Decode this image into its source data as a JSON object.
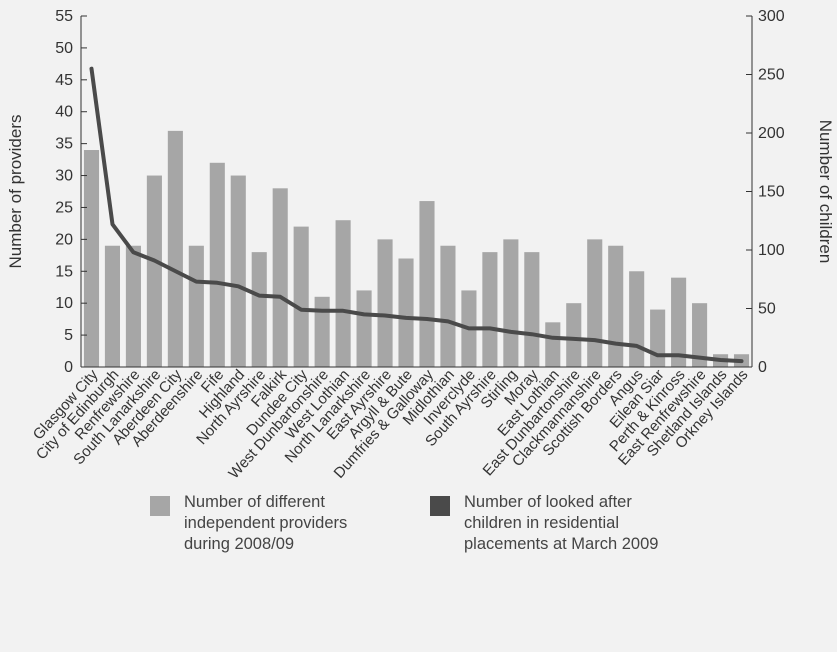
{
  "chart_data": {
    "type": "bar",
    "categories": [
      "Glasgow City",
      "City of Edinburgh",
      "Renfrewshire",
      "South Lanarkshire",
      "Aberdeen City",
      "Aberdeenshire",
      "Fife",
      "Highland",
      "North Ayrshire",
      "Falkirk",
      "Dundee City",
      "West Dunbartonshire",
      "West Lothian",
      "North Lanarkshire",
      "East Ayrshire",
      "Argyll & Bute",
      "Dumfries & Galloway",
      "Midlothian",
      "Inverclyde",
      "South Ayrshire",
      "Stirling",
      "Moray",
      "East Lothian",
      "East Dunbartonshire",
      "Clackmannanshire",
      "Scottish Borders",
      "Angus",
      "Eilean Siar",
      "Perth & Kinross",
      "East Renfrewshire",
      "Shetland Islands",
      "Orkney Islands"
    ],
    "series": [
      {
        "name": "Number of different independent providers during 2008/09",
        "type": "bar",
        "axis": "left",
        "color": "#a6a6a6",
        "values": [
          34,
          19,
          19,
          30,
          37,
          19,
          32,
          30,
          18,
          28,
          22,
          11,
          23,
          12,
          20,
          17,
          26,
          19,
          12,
          18,
          20,
          18,
          7,
          10,
          20,
          19,
          15,
          9,
          14,
          10,
          2,
          2
        ]
      },
      {
        "name": "Number of looked after children in residential placements at March 2009",
        "type": "line",
        "axis": "right",
        "color": "#4a4a4a",
        "values": [
          255,
          122,
          98,
          91,
          82,
          73,
          72,
          69,
          61,
          60,
          49,
          48,
          48,
          45,
          44,
          42,
          41,
          39,
          33,
          33,
          30,
          28,
          25,
          24,
          23,
          20,
          18,
          10,
          10,
          8,
          6,
          5
        ]
      }
    ],
    "ylabel": "Number of providers",
    "y2label": "Number of children",
    "ylim": [
      0,
      55
    ],
    "y2lim": [
      0,
      300
    ],
    "yticks": [
      0,
      5,
      10,
      15,
      20,
      25,
      30,
      35,
      40,
      45,
      50,
      55
    ],
    "y2ticks": [
      0,
      50,
      100,
      150,
      200,
      250,
      300
    ],
    "grid": false,
    "legend_position": "bottom"
  },
  "legend": {
    "bar_label": "Number of different independent providers during 2008/09",
    "line_label": "Number of looked after children in residential placements at March 2009"
  },
  "colors": {
    "background": "#f2f2f2",
    "bar": "#a6a6a6",
    "line": "#4a4a4a",
    "axis": "#333333"
  }
}
